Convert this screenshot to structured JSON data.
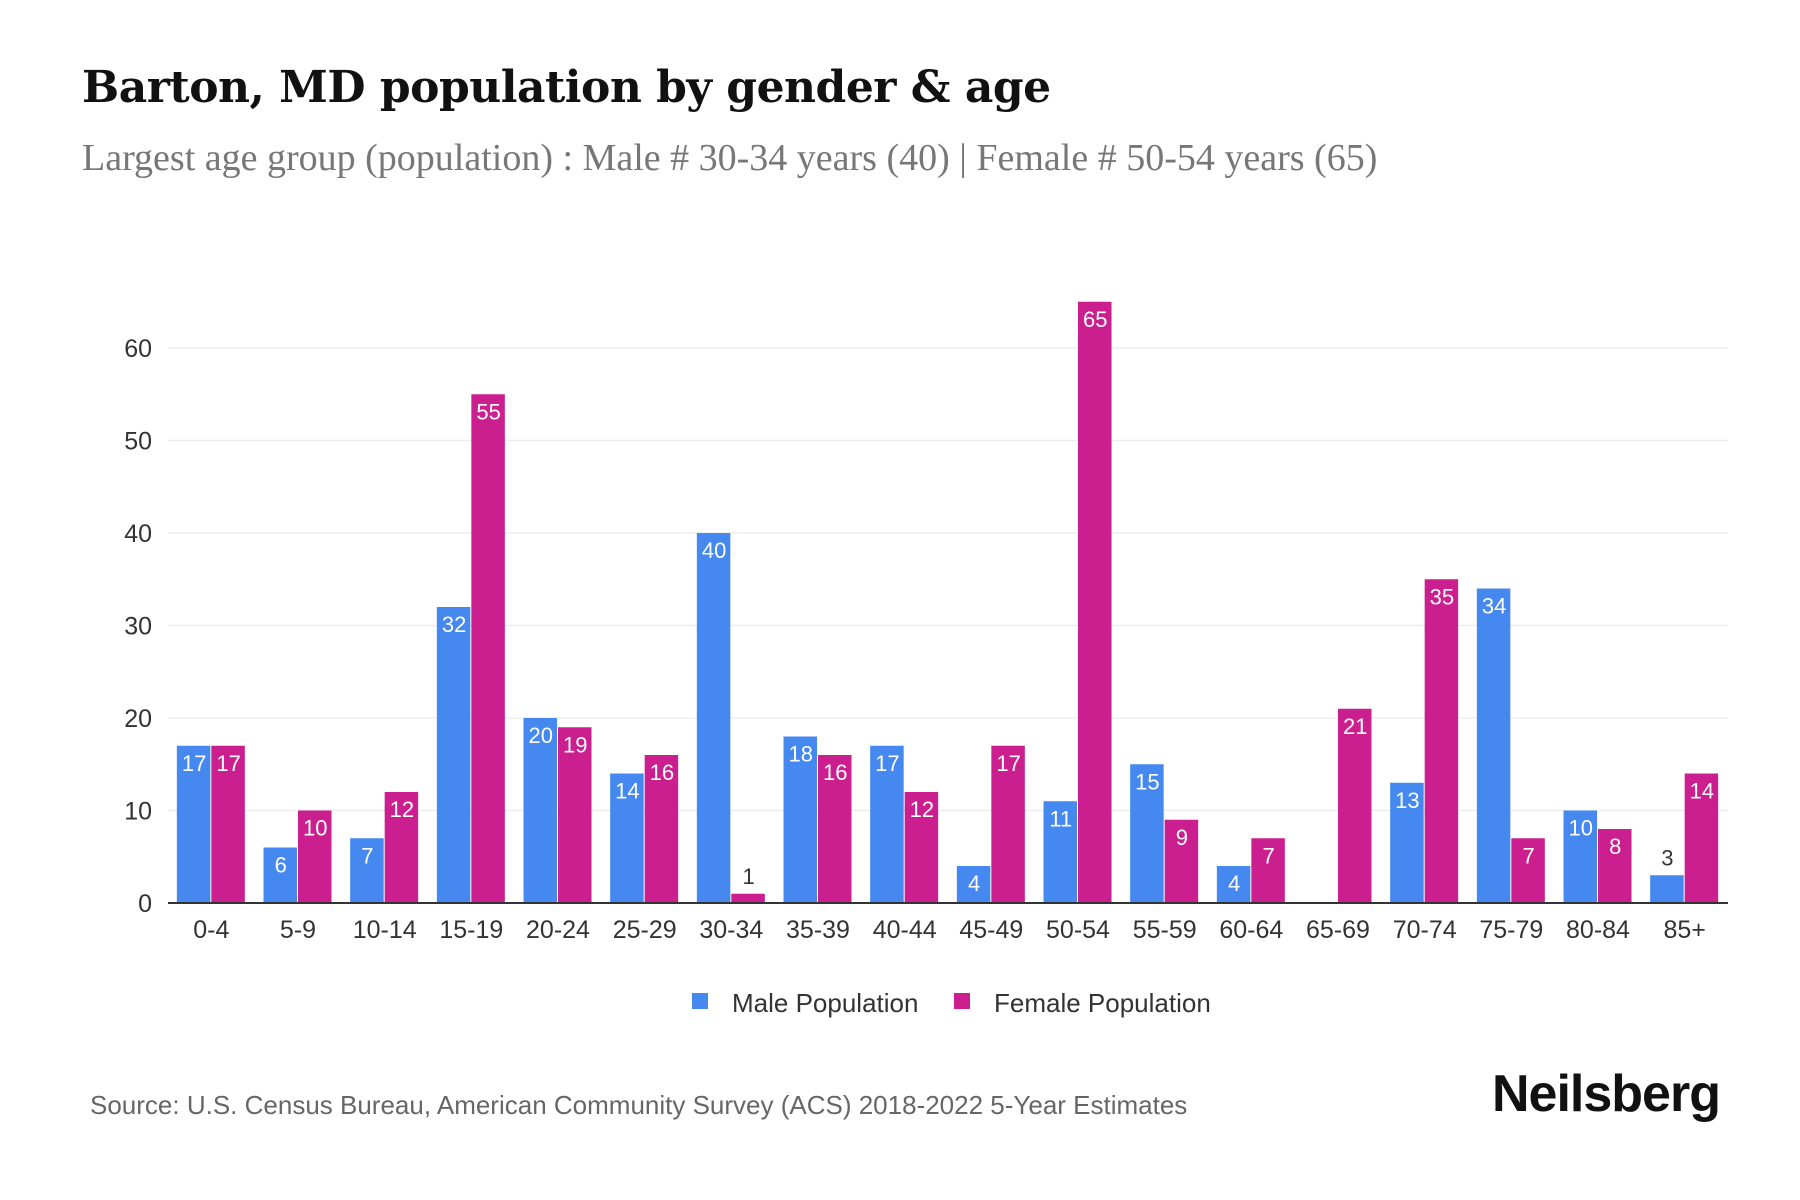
{
  "header": {
    "title": "Barton, MD population by gender & age",
    "subtitle": "Largest age group (population) : Male # 30-34 years (40) | Female # 50-54 years (65)"
  },
  "footer": {
    "source": "Source: U.S. Census Bureau, American Community Survey (ACS) 2018-2022 5-Year Estimates",
    "logo": "Neilsberg"
  },
  "chart_data": {
    "type": "bar",
    "title": "Barton, MD population by gender & age",
    "xlabel": "",
    "ylabel": "",
    "ylim": [
      0,
      65
    ],
    "yticks": [
      0,
      10,
      20,
      30,
      40,
      50,
      60
    ],
    "grid": true,
    "legend_position": "bottom",
    "categories": [
      "0-4",
      "5-9",
      "10-14",
      "15-19",
      "20-24",
      "25-29",
      "30-34",
      "35-39",
      "40-44",
      "45-49",
      "50-54",
      "55-59",
      "60-64",
      "65-69",
      "70-74",
      "75-79",
      "80-84",
      "85+"
    ],
    "series": [
      {
        "name": "Male Population",
        "color": "#4488f0",
        "values": [
          17,
          6,
          7,
          32,
          20,
          14,
          40,
          18,
          17,
          4,
          11,
          15,
          4,
          0,
          13,
          34,
          10,
          3
        ]
      },
      {
        "name": "Female Population",
        "color": "#cc1f8f",
        "values": [
          17,
          10,
          12,
          55,
          19,
          16,
          1,
          16,
          12,
          17,
          65,
          9,
          7,
          21,
          35,
          7,
          8,
          14
        ]
      }
    ]
  }
}
